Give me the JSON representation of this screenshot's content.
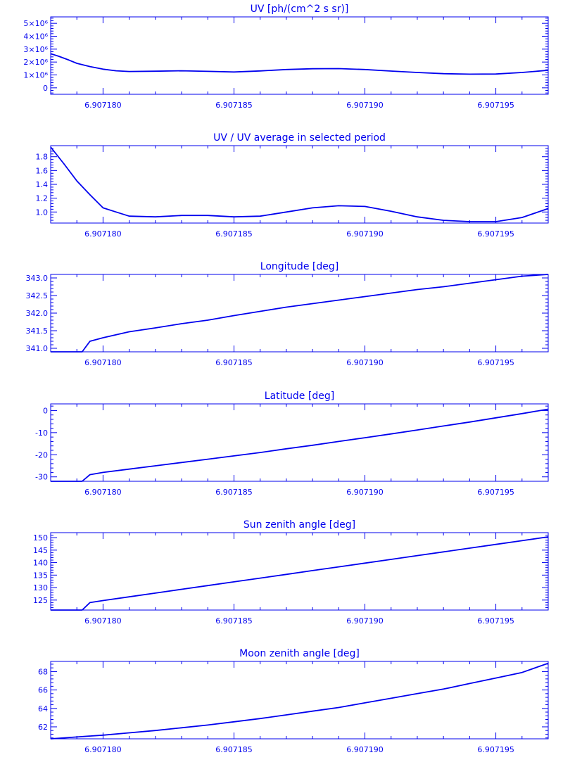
{
  "chart_data": [
    {
      "type": "line",
      "title": "UV [ph/(cm^2 s sr)]",
      "xlabel": "",
      "ylabel": "",
      "xlim": [
        6.907178,
        6.907197
      ],
      "ylim": [
        -500000,
        5500000
      ],
      "x_ticks": [
        6.90718,
        6.907185,
        6.90719,
        6.907195
      ],
      "x_tick_labels": [
        "6.907180",
        "6.907185",
        "6.907190",
        "6.907195"
      ],
      "y_ticks": [
        0,
        1000000,
        2000000,
        3000000,
        4000000,
        5000000
      ],
      "y_tick_labels": [
        "0",
        "1×10⁶",
        "2×10⁶",
        "3×10⁶",
        "4×10⁶",
        "5×10⁶"
      ],
      "grid": false,
      "series": [
        {
          "x": [
            6.907178,
            6.9071783,
            6.9071787,
            6.907179,
            6.9071795,
            6.90718,
            6.9071805,
            6.907181,
            6.907182,
            6.907183,
            6.907184,
            6.907185,
            6.907186,
            6.907187,
            6.907188,
            6.907189,
            6.90719,
            6.907191,
            6.907192,
            6.907193,
            6.907194,
            6.907195,
            6.907196,
            6.907197
          ],
          "y": [
            2650000,
            2450000,
            2150000,
            1900000,
            1650000,
            1450000,
            1320000,
            1270000,
            1290000,
            1320000,
            1280000,
            1230000,
            1310000,
            1420000,
            1480000,
            1490000,
            1420000,
            1300000,
            1190000,
            1100000,
            1060000,
            1070000,
            1190000,
            1360000
          ]
        }
      ]
    },
    {
      "type": "line",
      "title": "UV / UV average in selected period",
      "xlabel": "",
      "ylabel": "",
      "xlim": [
        6.907178,
        6.907197
      ],
      "ylim": [
        0.84,
        1.96
      ],
      "x_ticks": [
        6.90718,
        6.907185,
        6.90719,
        6.907195
      ],
      "x_tick_labels": [
        "6.907180",
        "6.907185",
        "6.907190",
        "6.907195"
      ],
      "y_ticks": [
        1.0,
        1.2,
        1.4,
        1.6,
        1.8
      ],
      "y_tick_labels": [
        "1.0",
        "1.2",
        "1.4",
        "1.6",
        "1.8"
      ],
      "grid": false,
      "series": [
        {
          "x": [
            6.907178,
            6.9071785,
            6.907179,
            6.9071795,
            6.90718,
            6.9071805,
            6.907181,
            6.907182,
            6.907183,
            6.907184,
            6.907185,
            6.907186,
            6.907187,
            6.907188,
            6.907189,
            6.90719,
            6.907191,
            6.907192,
            6.907193,
            6.907194,
            6.907195,
            6.907196,
            6.907197
          ],
          "y": [
            1.94,
            1.7,
            1.45,
            1.25,
            1.06,
            1.0,
            0.94,
            0.93,
            0.95,
            0.95,
            0.93,
            0.94,
            1.0,
            1.06,
            1.09,
            1.08,
            1.01,
            0.93,
            0.88,
            0.86,
            0.86,
            0.92,
            1.05
          ]
        }
      ]
    },
    {
      "type": "line",
      "title": "Longitude [deg]",
      "xlabel": "",
      "ylabel": "",
      "xlim": [
        6.907178,
        6.907197
      ],
      "ylim": [
        340.9,
        343.1
      ],
      "x_ticks": [
        6.90718,
        6.907185,
        6.90719,
        6.907195
      ],
      "x_tick_labels": [
        "6.907180",
        "6.907185",
        "6.907190",
        "6.907195"
      ],
      "y_ticks": [
        341.0,
        341.5,
        342.0,
        342.5,
        343.0
      ],
      "y_tick_labels": [
        "341.0",
        "341.5",
        "342.0",
        "342.5",
        "343.0"
      ],
      "grid": false,
      "series": [
        {
          "x": [
            6.907178,
            6.9071786,
            6.9071792,
            6.9071795,
            6.90718,
            6.907181,
            6.907182,
            6.907183,
            6.907184,
            6.907185,
            6.907186,
            6.907187,
            6.907188,
            6.907189,
            6.90719,
            6.907191,
            6.907192,
            6.907193,
            6.907194,
            6.907195,
            6.907196,
            6.907197
          ],
          "y": [
            340.9,
            340.9,
            340.9,
            341.2,
            341.3,
            341.47,
            341.58,
            341.7,
            341.8,
            341.93,
            342.05,
            342.17,
            342.27,
            342.37,
            342.47,
            342.57,
            342.67,
            342.75,
            342.85,
            342.95,
            343.05,
            343.1
          ]
        }
      ]
    },
    {
      "type": "line",
      "title": "Latitude [deg]",
      "xlabel": "",
      "ylabel": "",
      "xlim": [
        6.907178,
        6.907197
      ],
      "ylim": [
        -32,
        3
      ],
      "x_ticks": [
        6.90718,
        6.907185,
        6.90719,
        6.907195
      ],
      "x_tick_labels": [
        "6.907180",
        "6.907185",
        "6.907190",
        "6.907195"
      ],
      "y_ticks": [
        -30,
        -20,
        -10,
        0
      ],
      "y_tick_labels": [
        "-30",
        "-20",
        "-10",
        "0"
      ],
      "grid": false,
      "series": [
        {
          "x": [
            6.907178,
            6.9071786,
            6.9071792,
            6.9071795,
            6.90718,
            6.907181,
            6.907182,
            6.907183,
            6.907184,
            6.907185,
            6.907186,
            6.907187,
            6.907188,
            6.907189,
            6.90719,
            6.907191,
            6.907192,
            6.907193,
            6.907194,
            6.907195,
            6.907196,
            6.907197
          ],
          "y": [
            -32,
            -32,
            -32,
            -29,
            -28,
            -26.5,
            -25,
            -23.5,
            -22,
            -20.5,
            -19,
            -17.3,
            -15.7,
            -14,
            -12.3,
            -10.6,
            -8.8,
            -7,
            -5.2,
            -3.3,
            -1.4,
            0.6
          ]
        }
      ]
    },
    {
      "type": "line",
      "title": "Sun zenith angle [deg]",
      "xlabel": "",
      "ylabel": "",
      "xlim": [
        6.907178,
        6.907197
      ],
      "ylim": [
        121,
        152
      ],
      "x_ticks": [
        6.90718,
        6.907185,
        6.90719,
        6.907195
      ],
      "x_tick_labels": [
        "6.907180",
        "6.907185",
        "6.907190",
        "6.907195"
      ],
      "y_ticks": [
        125,
        130,
        135,
        140,
        145,
        150
      ],
      "y_tick_labels": [
        "125",
        "130",
        "135",
        "140",
        "145",
        "150"
      ],
      "grid": false,
      "series": [
        {
          "x": [
            6.907178,
            6.9071786,
            6.9071792,
            6.9071795,
            6.90718,
            6.907181,
            6.907182,
            6.907183,
            6.907184,
            6.907185,
            6.907186,
            6.907187,
            6.907188,
            6.907189,
            6.90719,
            6.907191,
            6.907192,
            6.907193,
            6.907194,
            6.907195,
            6.907196,
            6.907197
          ],
          "y": [
            121,
            121,
            121,
            124,
            124.8,
            126.3,
            127.8,
            129.3,
            130.8,
            132.3,
            133.8,
            135.3,
            136.8,
            138.3,
            139.8,
            141.3,
            142.8,
            144.3,
            145.8,
            147.3,
            148.8,
            150.3
          ]
        }
      ]
    },
    {
      "type": "line",
      "title": "Moon zenith angle [deg]",
      "xlabel": "",
      "ylabel": "",
      "xlim": [
        6.907178,
        6.907197
      ],
      "ylim": [
        60.7,
        69.1
      ],
      "x_ticks": [
        6.90718,
        6.907185,
        6.90719,
        6.907195
      ],
      "x_tick_labels": [
        "6.907180",
        "6.907185",
        "6.907190",
        "6.907195"
      ],
      "y_ticks": [
        62,
        64,
        66,
        68
      ],
      "y_tick_labels": [
        "62",
        "64",
        "66",
        "68"
      ],
      "grid": false,
      "series": [
        {
          "x": [
            6.907178,
            6.907179,
            6.90718,
            6.907181,
            6.907182,
            6.907183,
            6.907184,
            6.907185,
            6.907186,
            6.907187,
            6.907188,
            6.907189,
            6.90719,
            6.907191,
            6.907192,
            6.907193,
            6.907194,
            6.907195,
            6.907196,
            6.907197
          ],
          "y": [
            60.7,
            60.9,
            61.1,
            61.35,
            61.6,
            61.9,
            62.2,
            62.55,
            62.9,
            63.3,
            63.7,
            64.1,
            64.6,
            65.1,
            65.6,
            66.1,
            66.7,
            67.3,
            67.9,
            68.9
          ]
        }
      ]
    }
  ]
}
